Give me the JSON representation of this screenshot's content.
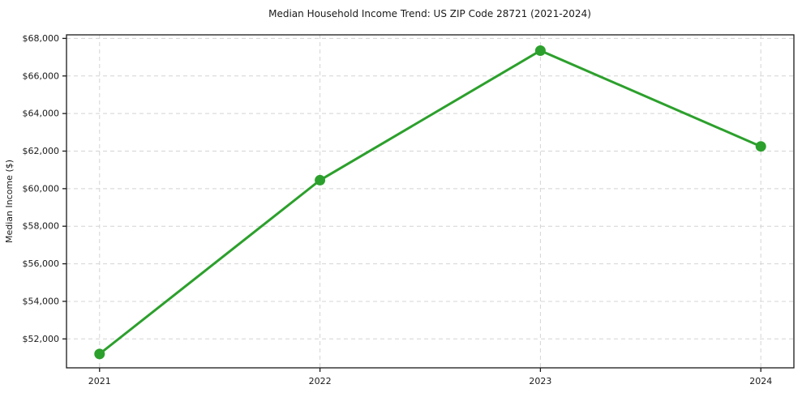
{
  "chart_data": {
    "type": "line",
    "title": "Median Household Income Trend: US ZIP Code 28721 (2021-2024)",
    "xlabel": "",
    "ylabel": "Median Income ($)",
    "x": [
      2021,
      2022,
      2023,
      2024
    ],
    "x_tick_labels": [
      "2021",
      "2022",
      "2023",
      "2024"
    ],
    "series": [
      {
        "name": "Median household income",
        "values": [
          51200,
          60450,
          67350,
          62250
        ],
        "color": "#2ca02c",
        "marker": "circle",
        "line_width": 3,
        "marker_radius": 6.5
      }
    ],
    "y_ticks": [
      {
        "value": 52000,
        "label": "$52,000"
      },
      {
        "value": 54000,
        "label": "$54,000"
      },
      {
        "value": 56000,
        "label": "$56,000"
      },
      {
        "value": 58000,
        "label": "$58,000"
      },
      {
        "value": 60000,
        "label": "$60,000"
      },
      {
        "value": 62000,
        "label": "$62,000"
      },
      {
        "value": 64000,
        "label": "$64,000"
      },
      {
        "value": 66000,
        "label": "$66,000"
      },
      {
        "value": 68000,
        "label": "$68,000"
      }
    ],
    "xlim": [
      2020.85,
      2024.15
    ],
    "ylim": [
      50460,
      68190
    ],
    "grid": {
      "visible": true,
      "style": "dashed",
      "color": "#d4d4d4"
    },
    "spine_color": "#1a1a1a",
    "legend": "none",
    "background_color": "#ffffff"
  }
}
